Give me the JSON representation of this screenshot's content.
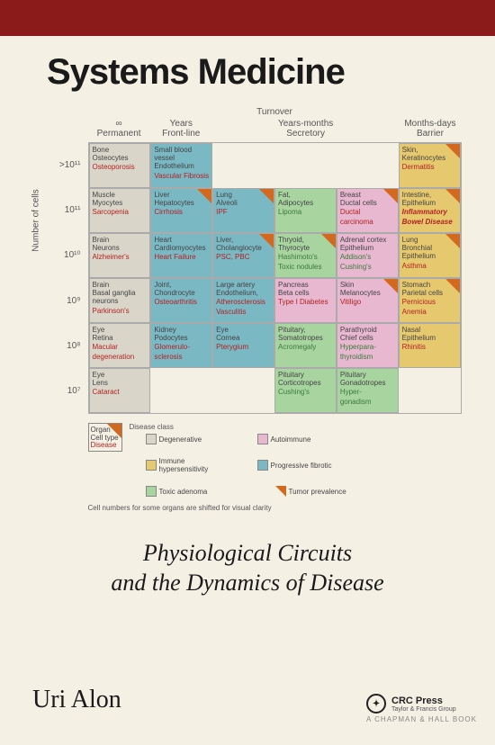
{
  "title": "Systems Medicine",
  "subtitle_l1": "Physiological Circuits",
  "subtitle_l2": "and the Dynamics of Disease",
  "author": "Uri Alon",
  "publisher": {
    "name": "CRC Press",
    "tagline": "Taylor & Francis Group",
    "book": "A CHAPMAN & HALL BOOK"
  },
  "chart": {
    "turnover": "Turnover",
    "y_label": "Number of cells",
    "note": "Cell numbers for some organs are shifted for visual clarity",
    "cols": [
      {
        "sym": "∞",
        "label": "Permanent"
      },
      {
        "sym": "Years",
        "label": "Front-line"
      },
      {
        "sym": "",
        "label": ""
      },
      {
        "sym": "Years-months",
        "label": "Secretory"
      },
      {
        "sym": "",
        "label": ""
      },
      {
        "sym": "Months-days",
        "label": "Barrier"
      }
    ],
    "y_ticks": [
      ">10¹¹",
      "10¹¹",
      "10¹⁰",
      "10⁹",
      "10⁸",
      "10⁷"
    ],
    "colors": {
      "degenerative": "#d9d6c9",
      "fibrotic": "#7ab8c4",
      "autoimmune": "#e8b8d0",
      "toxic": "#a8d4a0",
      "immune": "#e6c86e",
      "tumor": "#d2691e"
    },
    "cells": [
      {
        "r": 0,
        "c": 0,
        "bg": "degenerative",
        "organ": "Bone\nOsteocytes",
        "disease": "Osteoporosis"
      },
      {
        "r": 0,
        "c": 1,
        "bg": "fibrotic",
        "organ": "Small blood\nvessel\nEndothelium",
        "disease": "Vascular Fibrosis"
      },
      {
        "r": 0,
        "c": 5,
        "bg": "immune",
        "organ": "Skin,\nKeratinocytes",
        "disease": "Dermatitis",
        "tri": true
      },
      {
        "r": 1,
        "c": 0,
        "bg": "degenerative",
        "organ": "Muscle\nMyocytes",
        "disease": "Sarcopenia"
      },
      {
        "r": 1,
        "c": 1,
        "bg": "fibrotic",
        "organ": "Liver\nHepatocytes",
        "disease": "Cirrhosis",
        "tri": true
      },
      {
        "r": 1,
        "c": 2,
        "bg": "fibrotic",
        "organ": "Lung\nAlveoli",
        "disease": "IPF",
        "tri": true
      },
      {
        "r": 1,
        "c": 3,
        "bg": "toxic",
        "organ": "Fat,\nAdipocytes",
        "disease": "Lipoma",
        "green": true
      },
      {
        "r": 1,
        "c": 4,
        "bg": "autoimmune",
        "organ": "Breast\nDuctal cells",
        "disease": "Ductal\ncarcinoma",
        "tri": true
      },
      {
        "r": 1,
        "c": 5,
        "bg": "immune",
        "organ": "Intestine,\nEpithelium",
        "disease": "Inflammatory\nBowel Disease",
        "bold": true,
        "tri": true
      },
      {
        "r": 2,
        "c": 0,
        "bg": "degenerative",
        "organ": "Brain\nNeurons",
        "disease": "Alzheimer's"
      },
      {
        "r": 2,
        "c": 1,
        "bg": "fibrotic",
        "organ": "Heart\nCardiomyocytes",
        "disease": "Heart Failure"
      },
      {
        "r": 2,
        "c": 2,
        "bg": "fibrotic",
        "organ": "Liver,\nCholangiocyte",
        "disease": "PSC, PBC",
        "tri": true
      },
      {
        "r": 2,
        "c": 3,
        "bg": "toxic",
        "organ": "Thryoid,\nThyrocyte",
        "disease": "Hashimoto's\nToxic nodules",
        "green": true,
        "tri": true
      },
      {
        "r": 2,
        "c": 4,
        "bg": "autoimmune",
        "organ": "Adrenal cortex\nEpithelium",
        "disease": "Addison's\nCushing's",
        "green": true
      },
      {
        "r": 2,
        "c": 5,
        "bg": "immune",
        "organ": "Lung\nBronchial\nEpithelium",
        "disease": "Asthma",
        "tri": true
      },
      {
        "r": 3,
        "c": 0,
        "bg": "degenerative",
        "organ": "Brain\nBasal ganglia\nneurons",
        "disease": "Parkinson's"
      },
      {
        "r": 3,
        "c": 1,
        "bg": "fibrotic",
        "organ": "Joint,\nChondrocyte",
        "disease": "Osteoarthritis"
      },
      {
        "r": 3,
        "c": 2,
        "bg": "fibrotic",
        "organ": "Large artery\nEndothelium,",
        "disease": "Atherosclerosis\nVasculitis"
      },
      {
        "r": 3,
        "c": 3,
        "bg": "autoimmune",
        "organ": "Pancreas\nBeta cells",
        "disease": "Type I Diabetes"
      },
      {
        "r": 3,
        "c": 4,
        "bg": "autoimmune",
        "organ": "Skin\nMelanocytes",
        "disease": "Vitiligo",
        "tri": true
      },
      {
        "r": 3,
        "c": 5,
        "bg": "immune",
        "organ": "Stomach\nParietal cells",
        "disease": "Pernicious\nAnemia",
        "tri": true
      },
      {
        "r": 4,
        "c": 0,
        "bg": "degenerative",
        "organ": "Eye\nRetina",
        "disease": "Macular\ndegeneration"
      },
      {
        "r": 4,
        "c": 1,
        "bg": "fibrotic",
        "organ": "Kidney\nPodocytes",
        "disease": "Glomerulo-\nsclerosis"
      },
      {
        "r": 4,
        "c": 2,
        "bg": "fibrotic",
        "organ": "Eye\nCornea",
        "disease": "Pterygium"
      },
      {
        "r": 4,
        "c": 3,
        "bg": "toxic",
        "organ": "Pituitary,\nSomatotropes",
        "disease": "Acromegaly",
        "green": true
      },
      {
        "r": 4,
        "c": 4,
        "bg": "autoimmune",
        "organ": "Parathyroid\nChief cells",
        "disease": "Hyperpara-\nthyroidism",
        "green": true
      },
      {
        "r": 4,
        "c": 5,
        "bg": "immune",
        "organ": "Nasal\nEpithelium",
        "disease": "Rhinitis"
      },
      {
        "r": 5,
        "c": 0,
        "bg": "degenerative",
        "organ": "Eye\nLens",
        "disease": "Cataract"
      },
      {
        "r": 5,
        "c": 3,
        "bg": "toxic",
        "organ": "Pituitary\nCorticotropes",
        "disease": "Cushing's",
        "green": true
      },
      {
        "r": 5,
        "c": 4,
        "bg": "toxic",
        "organ": "Pituitary\nGonadotropes",
        "disease": "Hyper-\ngonadism",
        "green": true
      }
    ],
    "legend": {
      "sample": {
        "organ": "Organ",
        "celltype": "Cell type",
        "disease": "Disease"
      },
      "disease_class": "Disease class",
      "items": [
        {
          "c": "degenerative",
          "t": "Degenerative"
        },
        {
          "c": "autoimmune",
          "t": "Autoimmune"
        },
        {
          "c": "immune",
          "t": "Immune\nhypersensitivity"
        },
        {
          "c": "fibrotic",
          "t": "Progressive fibrotic"
        },
        {
          "c": "toxic",
          "t": "Toxic adenoma"
        },
        {
          "c": "tumor",
          "t": "Tumor prevalence",
          "tri": true
        }
      ]
    }
  }
}
